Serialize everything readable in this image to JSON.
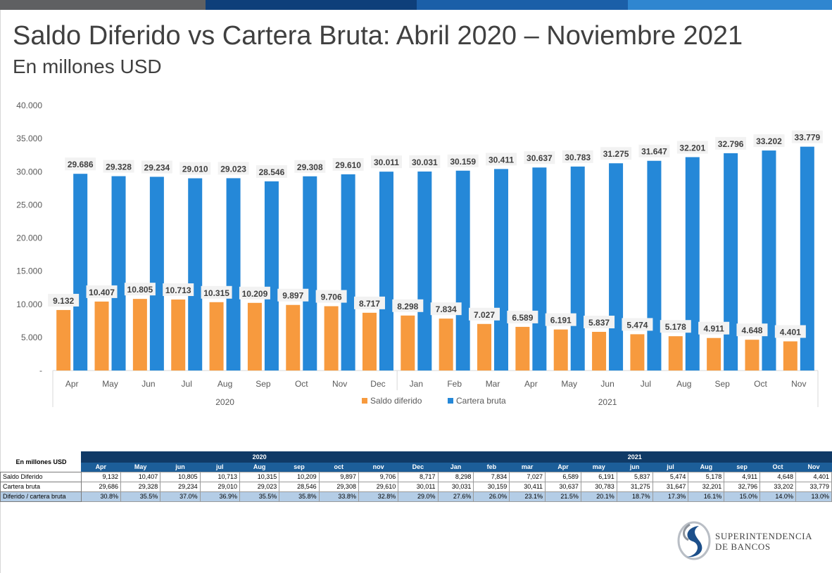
{
  "header": {
    "title": "Saldo Diferido vs Cartera Bruta: Abril 2020 – Noviembre 2021",
    "subtitle": "En millones USD",
    "bar_colors": [
      "#5f6062",
      "#0e3f7a",
      "#1b5fa8",
      "#2f86d0"
    ]
  },
  "chart_data": {
    "type": "bar",
    "categories": [
      "Apr",
      "May",
      "Jun",
      "Jul",
      "Aug",
      "Sep",
      "Oct",
      "Nov",
      "Dec",
      "Jan",
      "Feb",
      "Mar",
      "Apr",
      "May",
      "Jun",
      "Jul",
      "Aug",
      "Sep",
      "Oct",
      "Nov"
    ],
    "years": [
      {
        "label": "2020",
        "start": 0,
        "end": 8
      },
      {
        "label": "2021",
        "start": 9,
        "end": 19
      }
    ],
    "series": [
      {
        "name": "Saldo diferido",
        "color": "#f79a3e",
        "values": [
          9132,
          10407,
          10805,
          10713,
          10315,
          10209,
          9897,
          9706,
          8717,
          8298,
          7834,
          7027,
          6589,
          6191,
          5837,
          5474,
          5178,
          4911,
          4648,
          4401
        ],
        "labels": [
          "9.132",
          "10.407",
          "10.805",
          "10.713",
          "10.315",
          "10.209",
          "9.897",
          "9.706",
          "8.717",
          "8.298",
          "7.834",
          "7.027",
          "6.589",
          "6.191",
          "5.837",
          "5.474",
          "5.178",
          "4.911",
          "4.648",
          "4.401"
        ]
      },
      {
        "name": "Cartera bruta",
        "color": "#2588d8",
        "values": [
          29686,
          29328,
          29234,
          29010,
          29023,
          28546,
          29308,
          29610,
          30011,
          30031,
          30159,
          30411,
          30637,
          30783,
          31275,
          31647,
          32201,
          32796,
          33202,
          33779
        ],
        "labels": [
          "29.686",
          "29.328",
          "29.234",
          "29.010",
          "29.023",
          "28.546",
          "29.308",
          "29.610",
          "30.011",
          "30.031",
          "30.159",
          "30.411",
          "30.637",
          "30.783",
          "31.275",
          "31.647",
          "32.201",
          "32.796",
          "33.202",
          "33.779"
        ]
      }
    ],
    "ylim": [
      0,
      40000
    ],
    "y_ticks": [
      0,
      5000,
      10000,
      15000,
      20000,
      25000,
      30000,
      35000,
      40000
    ],
    "y_tick_labels": [
      "-",
      "5.000",
      "10.000",
      "15.000",
      "20.000",
      "25.000",
      "30.000",
      "35.000",
      "40.000"
    ],
    "legend_position": "bottom",
    "grid": false
  },
  "table": {
    "corner_label": "En millones USD",
    "years": [
      {
        "label": "2020",
        "span": 9
      },
      {
        "label": "2021",
        "span": 11
      }
    ],
    "months": [
      "Apr",
      "May",
      "jun",
      "jul",
      "Aug",
      "sep",
      "oct",
      "nov",
      "Dec",
      "Jan",
      "feb",
      "mar",
      "Apr",
      "may",
      "jun",
      "jul",
      "Aug",
      "sep",
      "Oct",
      "Nov"
    ],
    "rows": [
      {
        "label": "Saldo Diferido",
        "cells": [
          "9,132",
          "10,407",
          "10,805",
          "10,713",
          "10,315",
          "10,209",
          "9,897",
          "9,706",
          "8,717",
          "8,298",
          "7,834",
          "7,027",
          "6,589",
          "6,191",
          "5,837",
          "5,474",
          "5,178",
          "4,911",
          "4,648",
          "4,401"
        ]
      },
      {
        "label": "Cartera bruta",
        "cells": [
          "29,686",
          "29,328",
          "29,234",
          "29,010",
          "29,023",
          "28,546",
          "29,308",
          "29,610",
          "30,011",
          "30,031",
          "30,159",
          "30,411",
          "30,637",
          "30,783",
          "31,275",
          "31,647",
          "32,201",
          "32,796",
          "33,202",
          "33,779"
        ]
      },
      {
        "label": "Diferido / cartera bruta",
        "cells": [
          "30.8%",
          "35.5%",
          "37.0%",
          "36.9%",
          "35.5%",
          "35.8%",
          "33.8%",
          "32.8%",
          "29.0%",
          "27.6%",
          "26.0%",
          "23.1%",
          "21.5%",
          "20.1%",
          "18.7%",
          "17.3%",
          "16.1%",
          "15.0%",
          "14.0%",
          "13.0%"
        ]
      }
    ]
  },
  "logo": {
    "line1": "Superintendencia",
    "line2": "de Bancos",
    "icon": "superintendencia-logo-icon"
  }
}
